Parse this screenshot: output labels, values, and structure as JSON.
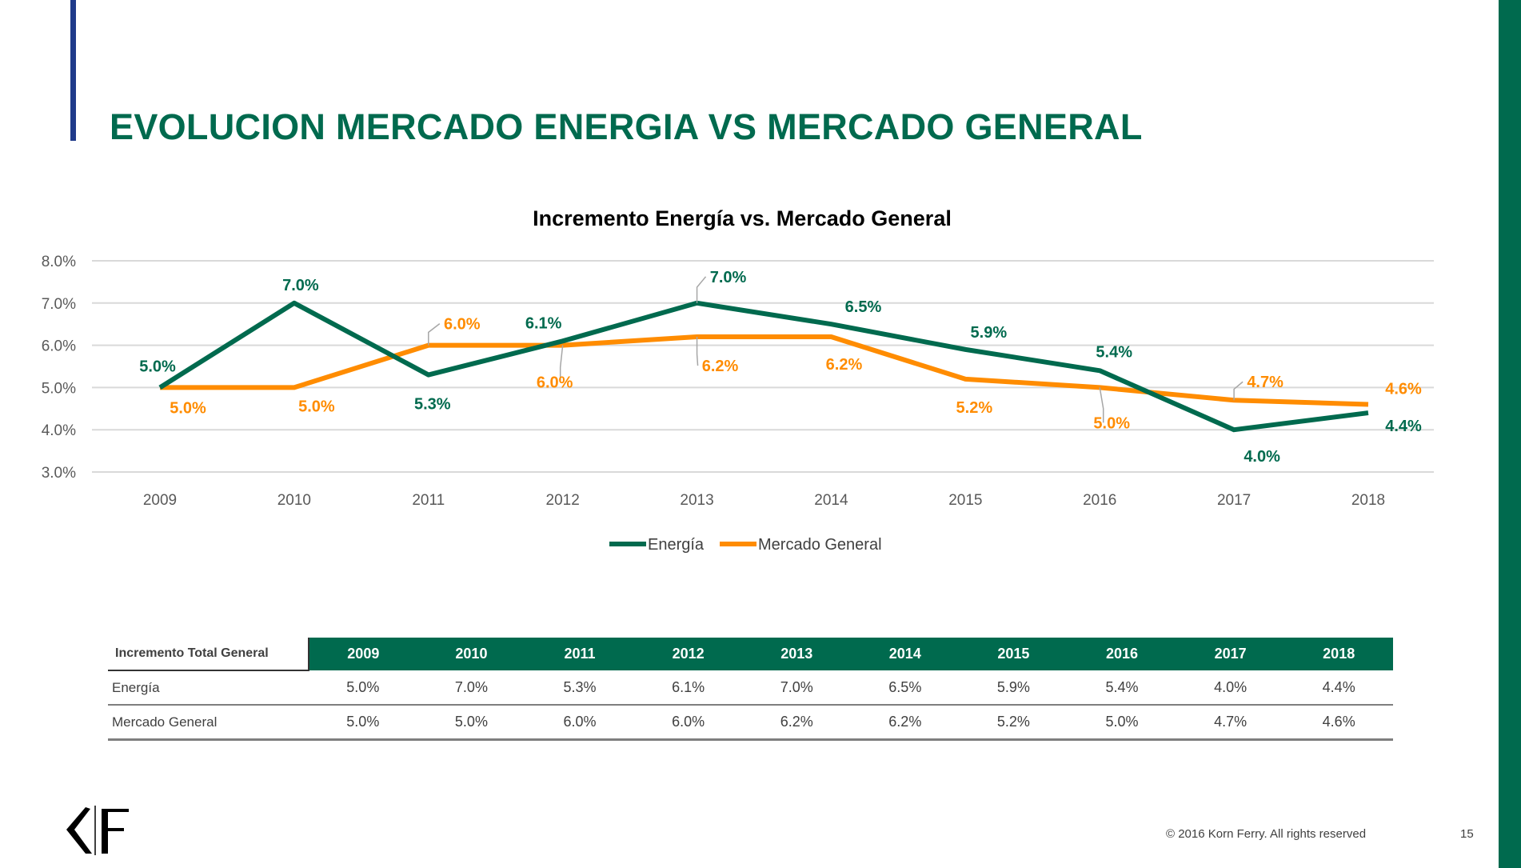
{
  "slide": {
    "title": "EVOLUCION MERCADO ENERGIA VS MERCADO GENERAL",
    "footer": "© 2016 Korn Ferry. All rights reserved",
    "page_number": "15",
    "logo_text": "KF"
  },
  "colors": {
    "energia": "#006a4e",
    "mercado": "#ff8c00",
    "header_bg": "#006a4e",
    "accent_bar": "#1f3a8a"
  },
  "chart_data": {
    "type": "line",
    "title": "Incremento Energía vs. Mercado General",
    "categories": [
      "2009",
      "2010",
      "2011",
      "2012",
      "2013",
      "2014",
      "2015",
      "2016",
      "2017",
      "2018"
    ],
    "ylim": [
      3.0,
      8.0
    ],
    "yticks": [
      "3.0%",
      "4.0%",
      "5.0%",
      "6.0%",
      "7.0%",
      "8.0%"
    ],
    "grid": true,
    "legend_position": "bottom",
    "series": [
      {
        "name": "Energía",
        "color": "#006a4e",
        "values": [
          5.0,
          7.0,
          5.3,
          6.1,
          7.0,
          6.5,
          5.9,
          5.4,
          4.0,
          4.4
        ],
        "labels": [
          "5.0%",
          "7.0%",
          "5.3%",
          "6.1%",
          "7.0%",
          "6.5%",
          "5.9%",
          "5.4%",
          "4.0%",
          "4.4%"
        ]
      },
      {
        "name": "Mercado General",
        "color": "#ff8c00",
        "values": [
          5.0,
          5.0,
          6.0,
          6.0,
          6.2,
          6.2,
          5.2,
          5.0,
          4.7,
          4.6
        ],
        "labels": [
          "5.0%",
          "5.0%",
          "6.0%",
          "6.0%",
          "6.2%",
          "6.2%",
          "5.2%",
          "5.0%",
          "4.7%",
          "4.6%"
        ]
      }
    ]
  },
  "table": {
    "corner": "Incremento Total General",
    "headers": [
      "2009",
      "2010",
      "2011",
      "2012",
      "2013",
      "2014",
      "2015",
      "2016",
      "2017",
      "2018"
    ],
    "rows": [
      {
        "label": "Energía",
        "values": [
          "5.0%",
          "7.0%",
          "5.3%",
          "6.1%",
          "7.0%",
          "6.5%",
          "5.9%",
          "5.4%",
          "4.0%",
          "4.4%"
        ]
      },
      {
        "label": "Mercado General",
        "values": [
          "5.0%",
          "5.0%",
          "6.0%",
          "6.0%",
          "6.2%",
          "6.2%",
          "5.2%",
          "5.0%",
          "4.7%",
          "4.6%"
        ]
      }
    ]
  }
}
